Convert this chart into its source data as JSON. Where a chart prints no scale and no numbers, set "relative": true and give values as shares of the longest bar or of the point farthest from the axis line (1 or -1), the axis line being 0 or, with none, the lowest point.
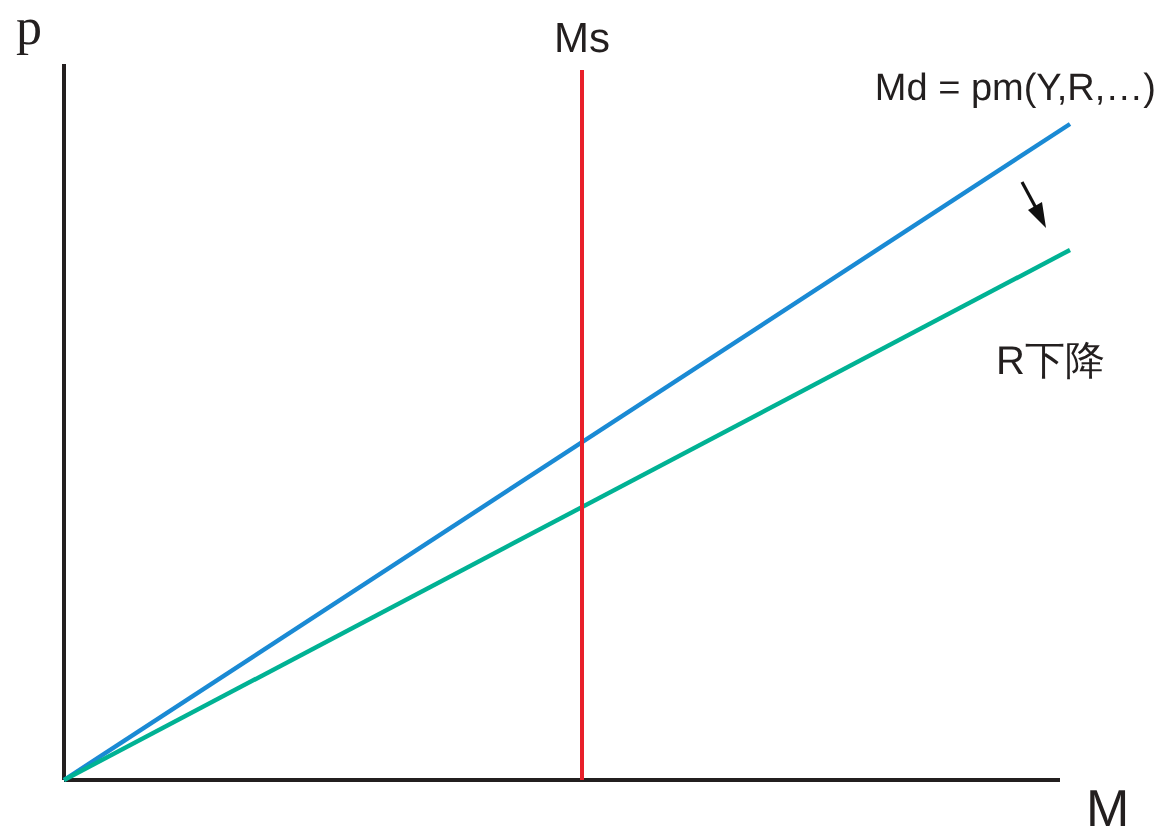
{
  "chart_data": {
    "type": "line",
    "relative": true,
    "xlabel": "M",
    "ylabel": "p",
    "categories": [
      null,
      null
    ],
    "series": [
      {
        "name": "Md = pm(Y,R,…)",
        "color": "#1a8ad4",
        "values": [
          0,
          1
        ]
      },
      {
        "color": "#00b294",
        "values": [
          0,
          0.808
        ]
      }
    ],
    "annotations": [
      "Ms",
      "R下降"
    ],
    "legend": false,
    "marker": "none"
  }
}
